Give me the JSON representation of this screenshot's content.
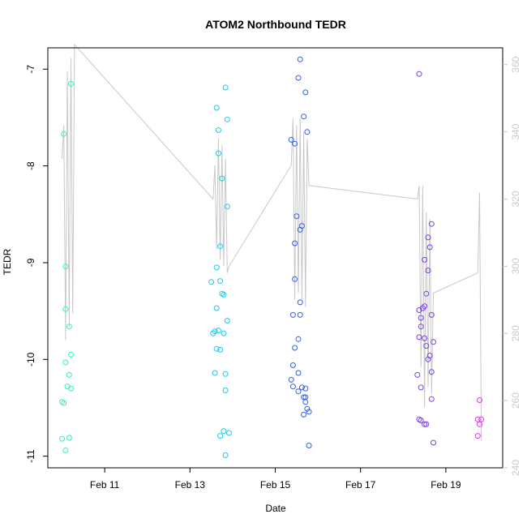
{
  "chart_data": {
    "type": "scatter",
    "title": "ATOM2 Northbound TEDR",
    "xlabel": "Date",
    "ylabel": "TEDR",
    "x_unit": "days",
    "xlim": [
      "2014-02-09T16:00",
      "2014-02-20T08:00"
    ],
    "ylim": [
      -11.12,
      -6.78
    ],
    "y_ticks": [
      -11,
      -10,
      -9,
      -8,
      -7
    ],
    "y_tick_labels": [
      "-11",
      "-10",
      "-9",
      "-8",
      "-7"
    ],
    "x_ticks": [
      "2014-02-11",
      "2014-02-13",
      "2014-02-15",
      "2014-02-17",
      "2014-02-19"
    ],
    "x_tick_labels": [
      "Feb 11",
      "Feb 13",
      "Feb 15",
      "Feb 17",
      "Feb 19"
    ],
    "y2lim": [
      240,
      365
    ],
    "y2_ticks": [
      240,
      260,
      280,
      300,
      320,
      340,
      360
    ],
    "y2_tick_labels": [
      "240",
      "260",
      "280",
      "300",
      "320",
      "340",
      "360"
    ],
    "grid": false,
    "series": [
      {
        "color": "#2ef2c0",
        "points": [
          [
            "2014-02-10T01:00",
            -7.67
          ],
          [
            "2014-02-10T05:00",
            -7.15
          ],
          [
            "2014-02-10T02:00",
            -9.04
          ],
          [
            "2014-02-10T02:00",
            -9.48
          ],
          [
            "2014-02-10T04:00",
            -9.66
          ],
          [
            "2014-02-10T05:00",
            -9.95
          ],
          [
            "2014-02-10T02:00",
            -10.03
          ],
          [
            "2014-02-10T04:00",
            -10.16
          ],
          [
            "2014-02-10T03:00",
            -10.28
          ],
          [
            "2014-02-10T05:00",
            -10.3
          ],
          [
            "2014-02-10T00:00",
            -10.44
          ],
          [
            "2014-02-10T01:00",
            -10.45
          ],
          [
            "2014-02-10T00:00",
            -10.82
          ],
          [
            "2014-02-10T04:00",
            -10.81
          ],
          [
            "2014-02-10T02:00",
            -10.94
          ]
        ]
      },
      {
        "color": "#1ec8f0",
        "points": [
          [
            "2014-02-13T20:00",
            -7.19
          ],
          [
            "2014-02-13T15:00",
            -7.4
          ],
          [
            "2014-02-13T21:00",
            -7.52
          ],
          [
            "2014-02-13T16:00",
            -7.63
          ],
          [
            "2014-02-13T16:00",
            -7.87
          ],
          [
            "2014-02-13T18:00",
            -8.13
          ],
          [
            "2014-02-13T21:00",
            -8.42
          ],
          [
            "2014-02-13T17:00",
            -8.83
          ],
          [
            "2014-02-13T15:00",
            -9.05
          ],
          [
            "2014-02-13T12:00",
            -9.2
          ],
          [
            "2014-02-13T17:00",
            -9.19
          ],
          [
            "2014-02-13T18:00",
            -9.32
          ],
          [
            "2014-02-13T19:00",
            -9.33
          ],
          [
            "2014-02-13T15:00",
            -9.47
          ],
          [
            "2014-02-13T21:00",
            -9.6
          ],
          [
            "2014-02-13T14:00",
            -9.71
          ],
          [
            "2014-02-13T13:00",
            -9.73
          ],
          [
            "2014-02-13T16:00",
            -9.7
          ],
          [
            "2014-02-13T19:00",
            -9.73
          ],
          [
            "2014-02-13T15:00",
            -9.89
          ],
          [
            "2014-02-13T17:00",
            -9.9
          ],
          [
            "2014-02-13T14:00",
            -10.14
          ],
          [
            "2014-02-13T20:00",
            -10.15
          ],
          [
            "2014-02-13T20:00",
            -10.32
          ],
          [
            "2014-02-13T19:00",
            -10.74
          ],
          [
            "2014-02-13T17:00",
            -10.79
          ],
          [
            "2014-02-13T22:00",
            -10.76
          ],
          [
            "2014-02-13T20:00",
            -10.99
          ]
        ]
      },
      {
        "color": "#2f5ef0",
        "points": [
          [
            "2014-02-15T14:00",
            -6.9
          ],
          [
            "2014-02-15T13:00",
            -7.09
          ],
          [
            "2014-02-15T17:00",
            -7.24
          ],
          [
            "2014-02-15T16:00",
            -7.49
          ],
          [
            "2014-02-15T18:00",
            -7.65
          ],
          [
            "2014-02-15T09:00",
            -7.73
          ],
          [
            "2014-02-15T11:00",
            -7.77
          ],
          [
            "2014-02-15T12:00",
            -8.52
          ],
          [
            "2014-02-15T15:00",
            -8.62
          ],
          [
            "2014-02-15T14:00",
            -8.66
          ],
          [
            "2014-02-15T11:00",
            -8.8
          ],
          [
            "2014-02-15T11:00",
            -9.17
          ],
          [
            "2014-02-15T14:00",
            -9.41
          ],
          [
            "2014-02-15T10:00",
            -9.54
          ],
          [
            "2014-02-15T14:00",
            -9.54
          ],
          [
            "2014-02-15T13:00",
            -9.79
          ],
          [
            "2014-02-15T11:00",
            -9.88
          ],
          [
            "2014-02-15T10:00",
            -10.06
          ],
          [
            "2014-02-15T13:00",
            -10.14
          ],
          [
            "2014-02-15T09:00",
            -10.21
          ],
          [
            "2014-02-15T10:00",
            -10.28
          ],
          [
            "2014-02-15T15:00",
            -10.29
          ],
          [
            "2014-02-15T17:00",
            -10.3
          ],
          [
            "2014-02-15T13:00",
            -10.33
          ],
          [
            "2014-02-15T16:00",
            -10.39
          ],
          [
            "2014-02-15T17:00",
            -10.39
          ],
          [
            "2014-02-15T17:00",
            -10.44
          ],
          [
            "2014-02-15T18:00",
            -10.51
          ],
          [
            "2014-02-15T19:00",
            -10.54
          ],
          [
            "2014-02-15T16:00",
            -10.57
          ],
          [
            "2014-02-15T19:00",
            -10.89
          ]
        ]
      },
      {
        "color": "#7a3ee8",
        "points": [
          [
            "2014-02-18T09:00",
            -7.05
          ],
          [
            "2014-02-18T16:00",
            -8.6
          ],
          [
            "2014-02-18T14:00",
            -8.74
          ],
          [
            "2014-02-18T15:00",
            -8.84
          ],
          [
            "2014-02-18T12:00",
            -8.97
          ],
          [
            "2014-02-18T14:00",
            -9.08
          ],
          [
            "2014-02-18T13:00",
            -9.32
          ],
          [
            "2014-02-18T12:00",
            -9.45
          ],
          [
            "2014-02-18T11:00",
            -9.47
          ],
          [
            "2014-02-18T09:00",
            -9.49
          ],
          [
            "2014-02-18T10:00",
            -9.57
          ],
          [
            "2014-02-18T16:00",
            -9.54
          ],
          [
            "2014-02-18T10:00",
            -9.66
          ],
          [
            "2014-02-18T09:00",
            -9.77
          ],
          [
            "2014-02-18T12:00",
            -9.78
          ],
          [
            "2014-02-18T17:00",
            -9.82
          ],
          [
            "2014-02-18T13:00",
            -9.86
          ],
          [
            "2014-02-18T15:00",
            -9.96
          ],
          [
            "2014-02-18T14:00",
            -10.0
          ],
          [
            "2014-02-18T16:00",
            -10.13
          ],
          [
            "2014-02-18T08:00",
            -10.16
          ],
          [
            "2014-02-18T10:00",
            -10.29
          ],
          [
            "2014-02-18T16:00",
            -10.41
          ],
          [
            "2014-02-18T09:00",
            -10.62
          ],
          [
            "2014-02-18T10:00",
            -10.63
          ],
          [
            "2014-02-18T12:00",
            -10.67
          ],
          [
            "2014-02-18T13:00",
            -10.67
          ],
          [
            "2014-02-18T17:00",
            -10.86
          ]
        ]
      },
      {
        "color": "#d838e8",
        "points": [
          [
            "2014-02-19T19:00",
            -10.42
          ],
          [
            "2014-02-19T18:00",
            -10.62
          ],
          [
            "2014-02-19T20:00",
            -10.62
          ],
          [
            "2014-02-19T19:00",
            -10.67
          ],
          [
            "2014-02-19T18:00",
            -10.79
          ]
        ]
      }
    ],
    "secondary_series": {
      "color": "#c8c8c8",
      "type": "line",
      "points": [
        [
          "2014-02-10T00:00",
          332
        ],
        [
          "2014-02-10T01:00",
          342
        ],
        [
          "2014-02-10T02:00",
          278
        ],
        [
          "2014-02-10T03:00",
          358
        ],
        [
          "2014-02-10T04:00",
          282
        ],
        [
          "2014-02-10T05:00",
          362
        ],
        [
          "2014-02-10T06:00",
          286
        ],
        [
          "2014-02-10T07:00",
          366
        ],
        [
          "2014-02-13T13:00",
          320
        ],
        [
          "2014-02-13T13:30",
          325
        ],
        [
          "2014-02-13T14:00",
          330
        ],
        [
          "2014-02-13T15:00",
          305
        ],
        [
          "2014-02-13T16:00",
          338
        ],
        [
          "2014-02-13T17:00",
          302
        ],
        [
          "2014-02-13T18:00",
          336
        ],
        [
          "2014-02-13T19:00",
          300
        ],
        [
          "2014-02-13T20:00",
          332
        ],
        [
          "2014-02-13T21:00",
          298
        ],
        [
          "2014-02-13T22:00",
          300
        ],
        [
          "2014-02-15T09:00",
          330
        ],
        [
          "2014-02-15T10:00",
          344
        ],
        [
          "2014-02-15T11:00",
          290
        ],
        [
          "2014-02-15T12:00",
          342
        ],
        [
          "2014-02-15T13:00",
          292
        ],
        [
          "2014-02-15T14:00",
          344
        ],
        [
          "2014-02-15T15:00",
          290
        ],
        [
          "2014-02-15T16:00",
          340
        ],
        [
          "2014-02-15T17:00",
          288
        ],
        [
          "2014-02-15T18:00",
          338
        ],
        [
          "2014-02-15T19:00",
          324
        ],
        [
          "2014-02-18T08:00",
          320
        ],
        [
          "2014-02-18T09:00",
          324
        ],
        [
          "2014-02-18T10:00",
          270
        ],
        [
          "2014-02-18T11:00",
          324
        ],
        [
          "2014-02-18T12:00",
          258
        ],
        [
          "2014-02-18T13:00",
          316
        ],
        [
          "2014-02-18T14:00",
          264
        ],
        [
          "2014-02-18T15:00",
          314
        ],
        [
          "2014-02-18T16:00",
          262
        ],
        [
          "2014-02-18T17:00",
          292
        ],
        [
          "2014-02-19T18:00",
          298
        ],
        [
          "2014-02-19T19:00",
          322
        ],
        [
          "2014-02-19T20:00",
          248
        ]
      ]
    }
  }
}
